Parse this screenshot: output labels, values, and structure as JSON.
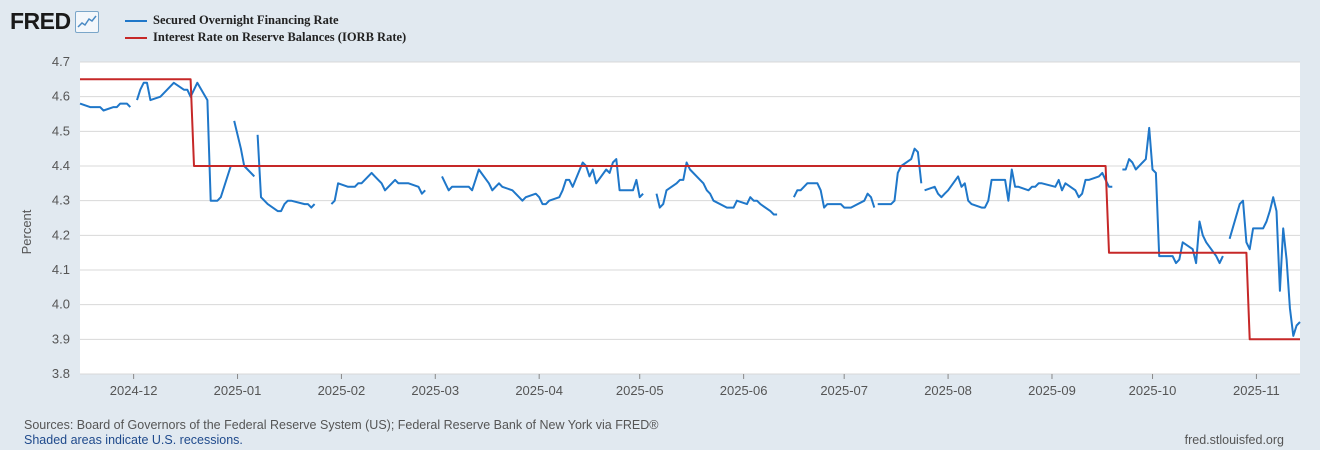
{
  "header": {
    "logo_text": "FRED",
    "logo_icon": "chart-line-icon"
  },
  "chart_data": {
    "type": "line",
    "title": "",
    "xlabel": "",
    "ylabel": "Percent",
    "ylim": [
      3.8,
      4.7
    ],
    "y_ticks": [
      "3.8",
      "3.9",
      "4.0",
      "4.1",
      "4.2",
      "4.3",
      "4.4",
      "4.5",
      "4.6",
      "4.7"
    ],
    "x_ticks": [
      "2024-12",
      "2025-01",
      "2025-02",
      "2025-03",
      "2025-04",
      "2025-05",
      "2025-06",
      "2025-07",
      "2025-08",
      "2025-09",
      "2025-10",
      "2025-11"
    ],
    "x_range": [
      "2024-11-15",
      "2025-11-14"
    ],
    "grid": "horizontal",
    "legend_position": "top-left",
    "series": [
      {
        "name": "Secured Overnight Financing Rate",
        "color": "#1f77c9",
        "points": [
          [
            "2024-11-15",
            4.58
          ],
          [
            "2024-11-18",
            4.57
          ],
          [
            "2024-11-19",
            4.57
          ],
          [
            "2024-11-20",
            4.57
          ],
          [
            "2024-11-21",
            4.57
          ],
          [
            "2024-11-22",
            4.56
          ],
          [
            "2024-11-25",
            4.57
          ],
          [
            "2024-11-26",
            4.57
          ],
          [
            "2024-11-27",
            4.58
          ],
          [
            "2024-11-29",
            4.58
          ],
          [
            "2024-11-30",
            4.57
          ],
          null,
          [
            "2024-12-02",
            4.59
          ],
          [
            "2024-12-03",
            4.62
          ],
          [
            "2024-12-04",
            4.64
          ],
          [
            "2024-12-05",
            4.64
          ],
          [
            "2024-12-06",
            4.59
          ],
          [
            "2024-12-09",
            4.6
          ],
          [
            "2024-12-13",
            4.64
          ],
          [
            "2024-12-16",
            4.62
          ],
          [
            "2024-12-17",
            4.62
          ],
          [
            "2024-12-18",
            4.6
          ],
          [
            "2024-12-19",
            4.62
          ],
          [
            "2024-12-20",
            4.64
          ],
          [
            "2024-12-23",
            4.59
          ],
          [
            "2024-12-24",
            4.3
          ],
          [
            "2024-12-26",
            4.3
          ],
          [
            "2024-12-27",
            4.31
          ],
          [
            "2024-12-30",
            4.4
          ],
          null,
          [
            "2024-12-31",
            4.53
          ],
          [
            "2025-01-02",
            4.45
          ],
          [
            "2025-01-03",
            4.4
          ],
          [
            "2025-01-06",
            4.37
          ],
          null,
          [
            "2025-01-07",
            4.49
          ],
          [
            "2025-01-08",
            4.31
          ],
          [
            "2025-01-10",
            4.29
          ],
          [
            "2025-01-13",
            4.27
          ],
          [
            "2025-01-14",
            4.27
          ],
          [
            "2025-01-15",
            4.29
          ],
          [
            "2025-01-16",
            4.3
          ],
          [
            "2025-01-17",
            4.3
          ],
          [
            "2025-01-21",
            4.29
          ],
          [
            "2025-01-22",
            4.29
          ],
          [
            "2025-01-23",
            4.28
          ],
          [
            "2025-01-24",
            4.29
          ],
          null,
          [
            "2025-01-25",
            4.29
          ],
          null,
          [
            "2025-01-29",
            4.29
          ],
          [
            "2025-01-30",
            4.3
          ],
          [
            "2025-01-31",
            4.35
          ],
          [
            "2025-02-03",
            4.34
          ],
          [
            "2025-02-04",
            4.34
          ],
          [
            "2025-02-05",
            4.34
          ],
          [
            "2025-02-06",
            4.35
          ],
          [
            "2025-02-07",
            4.35
          ],
          [
            "2025-02-10",
            4.38
          ],
          [
            "2025-02-11",
            4.37
          ],
          [
            "2025-02-12",
            4.36
          ],
          [
            "2025-02-13",
            4.35
          ],
          [
            "2025-02-14",
            4.33
          ],
          [
            "2025-02-17",
            4.36
          ],
          [
            "2025-02-18",
            4.35
          ],
          [
            "2025-02-19",
            4.35
          ],
          [
            "2025-02-20",
            4.35
          ],
          [
            "2025-02-21",
            4.35
          ],
          [
            "2025-02-24",
            4.34
          ],
          [
            "2025-02-25",
            4.32
          ],
          [
            "2025-02-26",
            4.33
          ],
          null,
          [
            "2025-03-03",
            4.37
          ],
          [
            "2025-03-04",
            4.35
          ],
          [
            "2025-03-05",
            4.33
          ],
          [
            "2025-03-06",
            4.34
          ],
          [
            "2025-03-07",
            4.34
          ],
          [
            "2025-03-10",
            4.34
          ],
          [
            "2025-03-11",
            4.34
          ],
          [
            "2025-03-12",
            4.33
          ],
          [
            "2025-03-13",
            4.36
          ],
          [
            "2025-03-14",
            4.39
          ],
          [
            "2025-03-17",
            4.35
          ],
          [
            "2025-03-18",
            4.33
          ],
          [
            "2025-03-19",
            4.34
          ],
          [
            "2025-03-20",
            4.35
          ],
          [
            "2025-03-21",
            4.34
          ],
          [
            "2025-03-24",
            4.33
          ],
          [
            "2025-03-25",
            4.32
          ],
          [
            "2025-03-26",
            4.31
          ],
          [
            "2025-03-27",
            4.3
          ],
          [
            "2025-03-28",
            4.31
          ],
          [
            "2025-03-31",
            4.32
          ],
          [
            "2025-04-01",
            4.31
          ],
          [
            "2025-04-02",
            4.29
          ],
          [
            "2025-04-03",
            4.29
          ],
          [
            "2025-04-04",
            4.3
          ],
          [
            "2025-04-07",
            4.31
          ],
          [
            "2025-04-08",
            4.33
          ],
          [
            "2025-04-09",
            4.36
          ],
          [
            "2025-04-10",
            4.36
          ],
          [
            "2025-04-11",
            4.34
          ],
          [
            "2025-04-14",
            4.41
          ],
          [
            "2025-04-15",
            4.4
          ],
          [
            "2025-04-16",
            4.37
          ],
          [
            "2025-04-17",
            4.39
          ],
          [
            "2025-04-18",
            4.35
          ],
          [
            "2025-04-21",
            4.39
          ],
          [
            "2025-04-22",
            4.38
          ],
          [
            "2025-04-23",
            4.41
          ],
          [
            "2025-04-24",
            4.42
          ],
          [
            "2025-04-25",
            4.33
          ],
          [
            "2025-04-28",
            4.33
          ],
          [
            "2025-04-29",
            4.33
          ],
          [
            "2025-04-30",
            4.36
          ],
          [
            "2025-05-01",
            4.31
          ],
          [
            "2025-05-02",
            4.32
          ],
          null,
          [
            "2025-05-06",
            4.32
          ],
          [
            "2025-05-07",
            4.28
          ],
          [
            "2025-05-08",
            4.29
          ],
          [
            "2025-05-09",
            4.33
          ],
          [
            "2025-05-12",
            4.35
          ],
          [
            "2025-05-13",
            4.36
          ],
          [
            "2025-05-14",
            4.36
          ],
          [
            "2025-05-15",
            4.41
          ],
          [
            "2025-05-16",
            4.39
          ],
          [
            "2025-05-19",
            4.36
          ],
          [
            "2025-05-20",
            4.35
          ],
          [
            "2025-05-21",
            4.33
          ],
          [
            "2025-05-22",
            4.32
          ],
          [
            "2025-05-23",
            4.3
          ],
          [
            "2025-05-27",
            4.28
          ],
          [
            "2025-05-28",
            4.28
          ],
          [
            "2025-05-29",
            4.28
          ],
          [
            "2025-05-30",
            4.3
          ],
          [
            "2025-06-02",
            4.29
          ],
          [
            "2025-06-03",
            4.31
          ],
          [
            "2025-06-04",
            4.3
          ],
          [
            "2025-06-05",
            4.3
          ],
          [
            "2025-06-06",
            4.29
          ],
          [
            "2025-06-09",
            4.27
          ],
          [
            "2025-06-10",
            4.26
          ],
          [
            "2025-06-11",
            4.26
          ],
          null,
          [
            "2025-06-16",
            4.31
          ],
          [
            "2025-06-17",
            4.33
          ],
          [
            "2025-06-18",
            4.33
          ],
          [
            "2025-06-20",
            4.35
          ],
          [
            "2025-06-23",
            4.35
          ],
          [
            "2025-06-24",
            4.33
          ],
          [
            "2025-06-25",
            4.28
          ],
          [
            "2025-06-26",
            4.29
          ],
          [
            "2025-06-27",
            4.29
          ],
          [
            "2025-06-30",
            4.29
          ],
          [
            "2025-07-01",
            4.28
          ],
          [
            "2025-07-02",
            4.28
          ],
          [
            "2025-07-03",
            4.28
          ],
          [
            "2025-07-07",
            4.3
          ],
          [
            "2025-07-08",
            4.32
          ],
          [
            "2025-07-09",
            4.31
          ],
          [
            "2025-07-10",
            4.28
          ],
          null,
          [
            "2025-07-11",
            4.29
          ],
          [
            "2025-07-14",
            4.29
          ],
          [
            "2025-07-15",
            4.29
          ],
          [
            "2025-07-16",
            4.3
          ],
          [
            "2025-07-17",
            4.38
          ],
          [
            "2025-07-18",
            4.4
          ],
          [
            "2025-07-21",
            4.42
          ],
          [
            "2025-07-22",
            4.45
          ],
          [
            "2025-07-23",
            4.44
          ],
          [
            "2025-07-24",
            4.35
          ],
          null,
          [
            "2025-07-25",
            4.33
          ],
          [
            "2025-07-28",
            4.34
          ],
          [
            "2025-07-29",
            4.32
          ],
          [
            "2025-07-30",
            4.31
          ],
          [
            "2025-07-31",
            4.32
          ],
          [
            "2025-08-01",
            4.33
          ],
          [
            "2025-08-04",
            4.37
          ],
          [
            "2025-08-05",
            4.34
          ],
          [
            "2025-08-06",
            4.35
          ],
          [
            "2025-08-07",
            4.3
          ],
          [
            "2025-08-08",
            4.29
          ],
          [
            "2025-08-11",
            4.28
          ],
          [
            "2025-08-12",
            4.28
          ],
          [
            "2025-08-13",
            4.3
          ],
          [
            "2025-08-14",
            4.36
          ],
          [
            "2025-08-15",
            4.36
          ],
          [
            "2025-08-18",
            4.36
          ],
          [
            "2025-08-19",
            4.3
          ],
          [
            "2025-08-20",
            4.39
          ],
          [
            "2025-08-21",
            4.34
          ],
          [
            "2025-08-22",
            4.34
          ],
          [
            "2025-08-25",
            4.33
          ],
          [
            "2025-08-26",
            4.34
          ],
          [
            "2025-08-27",
            4.34
          ],
          [
            "2025-08-28",
            4.35
          ],
          [
            "2025-08-29",
            4.35
          ],
          [
            "2025-09-02",
            4.34
          ],
          [
            "2025-09-03",
            4.36
          ],
          [
            "2025-09-04",
            4.33
          ],
          [
            "2025-09-05",
            4.35
          ],
          [
            "2025-09-08",
            4.33
          ],
          [
            "2025-09-09",
            4.31
          ],
          [
            "2025-09-10",
            4.32
          ],
          [
            "2025-09-11",
            4.36
          ],
          [
            "2025-09-12",
            4.36
          ],
          [
            "2025-09-15",
            4.37
          ],
          [
            "2025-09-16",
            4.38
          ],
          [
            "2025-09-17",
            4.36
          ],
          [
            "2025-09-18",
            4.34
          ],
          [
            "2025-09-19",
            4.34
          ],
          null,
          [
            "2025-09-22",
            4.39
          ],
          [
            "2025-09-23",
            4.39
          ],
          [
            "2025-09-24",
            4.42
          ],
          [
            "2025-09-25",
            4.41
          ],
          [
            "2025-09-26",
            4.39
          ],
          [
            "2025-09-29",
            4.42
          ],
          [
            "2025-09-30",
            4.51
          ],
          [
            "2025-10-01",
            4.39
          ],
          [
            "2025-10-02",
            4.38
          ],
          [
            "2025-10-03",
            4.14
          ],
          [
            "2025-10-06",
            4.14
          ],
          [
            "2025-10-07",
            4.14
          ],
          [
            "2025-10-08",
            4.12
          ],
          [
            "2025-10-09",
            4.13
          ],
          [
            "2025-10-10",
            4.18
          ],
          [
            "2025-10-13",
            4.16
          ],
          [
            "2025-10-14",
            4.12
          ],
          [
            "2025-10-15",
            4.24
          ],
          [
            "2025-10-16",
            4.2
          ],
          [
            "2025-10-17",
            4.18
          ],
          [
            "2025-10-20",
            4.14
          ],
          [
            "2025-10-21",
            4.12
          ],
          [
            "2025-10-22",
            4.14
          ],
          null,
          [
            "2025-10-24",
            4.19
          ],
          [
            "2025-10-27",
            4.29
          ],
          [
            "2025-10-28",
            4.3
          ],
          [
            "2025-10-29",
            4.18
          ],
          [
            "2025-10-30",
            4.16
          ],
          [
            "2025-10-31",
            4.22
          ],
          [
            "2025-11-03",
            4.22
          ],
          [
            "2025-11-04",
            4.24
          ],
          [
            "2025-11-05",
            4.27
          ],
          [
            "2025-11-06",
            4.31
          ],
          [
            "2025-11-07",
            4.27
          ],
          [
            "2025-11-08",
            4.04
          ],
          [
            "2025-11-09",
            4.22
          ],
          [
            "2025-11-10",
            4.13
          ],
          [
            "2025-11-11",
            3.99
          ],
          [
            "2025-11-12",
            3.91
          ],
          [
            "2025-11-13",
            3.94
          ],
          [
            "2025-11-14",
            3.95
          ]
        ]
      },
      {
        "name": "Interest Rate on Reserve Balances (IORB Rate)",
        "color": "#c62828",
        "step": true,
        "points": [
          [
            "2024-11-15",
            4.65
          ],
          [
            "2024-12-18",
            4.65
          ],
          [
            "2024-12-19",
            4.4
          ],
          [
            "2025-09-17",
            4.4
          ],
          [
            "2025-09-18",
            4.15
          ],
          [
            "2025-10-29",
            4.15
          ],
          [
            "2025-10-30",
            3.9
          ],
          [
            "2025-11-14",
            3.9
          ]
        ]
      }
    ]
  },
  "footer": {
    "sources": "Sources: Board of Governors of the Federal Reserve System (US); Federal Reserve Bank of New York via FRED®",
    "recessions": "Shaded areas indicate U.S. recessions.",
    "site": "fred.stlouisfed.org"
  }
}
